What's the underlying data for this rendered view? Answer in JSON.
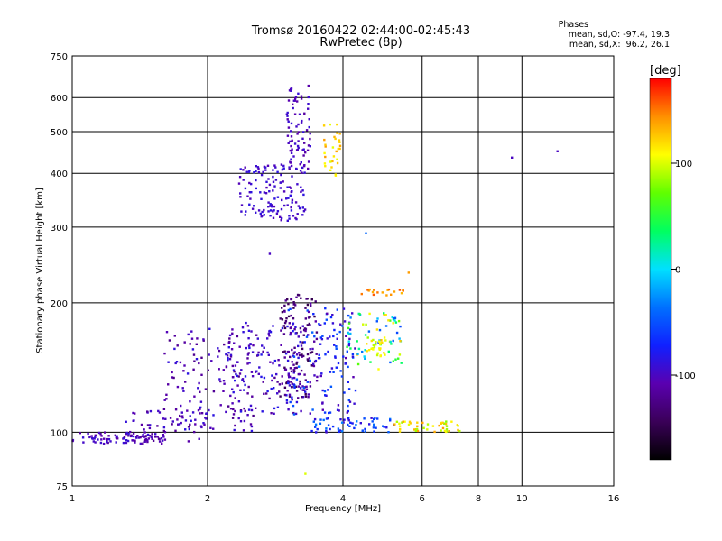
{
  "chart_data": {
    "type": "scatter",
    "title": "Tromsø 20160422 02:44:00-02:45:43",
    "subtitle": "RwPretec (8p)",
    "xlabel": "Frequency [MHz]",
    "ylabel": "Stationary phase Virtual Height [km]",
    "xscale": "log",
    "yscale": "log",
    "xlim": [
      1,
      16
    ],
    "ylim": [
      75,
      750
    ],
    "x_ticks": [
      "1",
      "2",
      "4",
      "6",
      "8",
      "10",
      "16"
    ],
    "y_ticks": [
      "75",
      "100",
      "200",
      "300",
      "400",
      "500",
      "600",
      "750"
    ],
    "grid": true,
    "colorbar": {
      "label": "[deg]",
      "range": [
        -180,
        180
      ],
      "ticks": [
        "100",
        "0",
        "-100"
      ],
      "colors": [
        "#000000",
        "#3a0058",
        "#5a00b0",
        "#1020ff",
        "#0070ff",
        "#00e0ff",
        "#00ff60",
        "#60ff00",
        "#ffff00",
        "#ff9000",
        "#ff0000"
      ]
    },
    "stats": {
      "header": "Phases",
      "o_line": "mean, sd,O: -97.4, 19.3",
      "x_line": "mean, sd,X:  96.2, 26.1"
    },
    "clusters": [
      {
        "f": [
          1.0,
          1.6
        ],
        "h": [
          94,
          100
        ],
        "phase": [
          -120,
          -90
        ],
        "n": 80
      },
      {
        "f": [
          1.3,
          2.0
        ],
        "h": [
          95,
          115
        ],
        "phase": [
          -120,
          -85
        ],
        "n": 70
      },
      {
        "f": [
          1.6,
          2.6
        ],
        "h": [
          100,
          175
        ],
        "phase": [
          -125,
          -85
        ],
        "n": 130
      },
      {
        "f": [
          2.2,
          3.3
        ],
        "h": [
          110,
          180
        ],
        "phase": [
          -120,
          -80
        ],
        "n": 150
      },
      {
        "f": [
          2.9,
          3.5
        ],
        "h": [
          120,
          210
        ],
        "phase": [
          -150,
          -110
        ],
        "n": 120
      },
      {
        "f": [
          3.0,
          4.3
        ],
        "h": [
          110,
          195
        ],
        "phase": [
          -110,
          -40
        ],
        "n": 140
      },
      {
        "f": [
          3.4,
          5.2
        ],
        "h": [
          100,
          108
        ],
        "phase": [
          -100,
          -30
        ],
        "n": 60
      },
      {
        "f": [
          5.2,
          7.3
        ],
        "h": [
          100,
          106
        ],
        "phase": [
          80,
          140
        ],
        "n": 45
      },
      {
        "f": [
          4.0,
          5.4
        ],
        "h": [
          140,
          190
        ],
        "phase": [
          -60,
          130
        ],
        "n": 70
      },
      {
        "f": [
          4.5,
          5.0
        ],
        "h": [
          150,
          165
        ],
        "phase": [
          90,
          120
        ],
        "n": 25
      },
      {
        "f": [
          4.4,
          5.5
        ],
        "h": [
          208,
          215
        ],
        "phase": [
          130,
          160
        ],
        "n": 18
      },
      {
        "f": [
          2.35,
          3.3
        ],
        "h": [
          310,
          420
        ],
        "phase": [
          -105,
          -85
        ],
        "n": 140
      },
      {
        "f": [
          3.0,
          3.4
        ],
        "h": [
          400,
          640
        ],
        "phase": [
          -115,
          -90
        ],
        "n": 80
      },
      {
        "f": [
          3.6,
          3.95
        ],
        "h": [
          395,
          520
        ],
        "phase": [
          100,
          140
        ],
        "n": 30
      }
    ],
    "isolated_points": [
      {
        "x": 9.5,
        "y": 435,
        "phase": -100
      },
      {
        "x": 12.0,
        "y": 450,
        "phase": -100
      },
      {
        "x": 5.6,
        "y": 235,
        "phase": 140
      },
      {
        "x": 2.75,
        "y": 260,
        "phase": -100
      },
      {
        "x": 4.5,
        "y": 290,
        "phase": -40
      },
      {
        "x": 3.3,
        "y": 80,
        "phase": 100
      }
    ]
  }
}
